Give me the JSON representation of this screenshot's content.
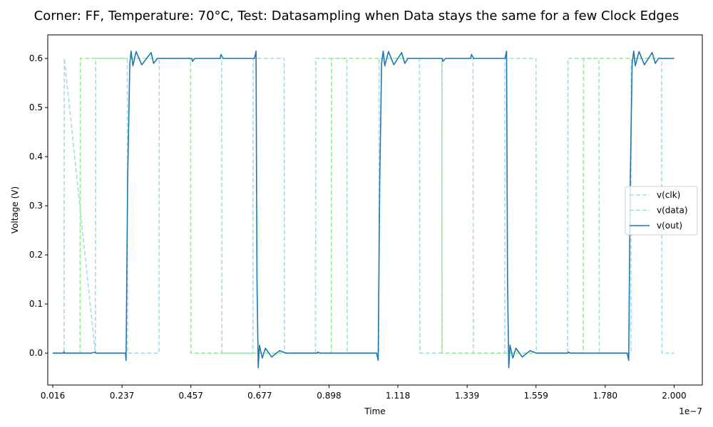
{
  "chart_data": {
    "type": "line",
    "title": "Corner: FF, Temperature: 70°C, Test: Datasampling when Data stays the same for a few Clock Edges",
    "xlabel": "Time",
    "ylabel": "Voltage (V)",
    "x_offset_text": "1e−7",
    "xlim": [
      0,
      2.09
    ],
    "ylim": [
      -0.065,
      0.648
    ],
    "xticks": [
      0.016,
      0.237,
      0.457,
      0.677,
      0.898,
      1.118,
      1.339,
      1.559,
      1.78,
      2.0
    ],
    "xtick_labels": [
      "0.016",
      "0.237",
      "0.457",
      "0.677",
      "0.898",
      "1.118",
      "1.339",
      "1.559",
      "1.780",
      "2.000"
    ],
    "yticks": [
      0.0,
      0.1,
      0.2,
      0.3,
      0.4,
      0.5,
      0.6
    ],
    "ytick_labels": [
      "0.0",
      "0.1",
      "0.2",
      "0.3",
      "0.4",
      "0.5",
      "0.6"
    ],
    "legend_position": "center-right",
    "grid": false,
    "series": [
      {
        "name": "v(clk)",
        "color": "#add8e6",
        "dash": "dashed",
        "points": [
          [
            0.016,
            0.0
          ],
          [
            0.052,
            0.0
          ],
          [
            0.053,
            0.6
          ],
          [
            0.152,
            0.0
          ],
          [
            0.153,
            0.6
          ],
          [
            0.254,
            0.6
          ],
          [
            0.255,
            0.0
          ],
          [
            0.355,
            0.0
          ],
          [
            0.356,
            0.6
          ],
          [
            0.555,
            0.6
          ],
          [
            0.556,
            0.0
          ],
          [
            0.655,
            0.0
          ],
          [
            0.656,
            0.6
          ],
          [
            0.755,
            0.6
          ],
          [
            0.756,
            0.0
          ],
          [
            0.855,
            0.0
          ],
          [
            0.856,
            0.6
          ],
          [
            0.955,
            0.6
          ],
          [
            0.956,
            0.0
          ],
          [
            1.057,
            0.0
          ],
          [
            1.058,
            0.6
          ],
          [
            1.187,
            0.6
          ],
          [
            1.188,
            0.0
          ],
          [
            1.258,
            0.0
          ],
          [
            1.259,
            0.6
          ],
          [
            1.358,
            0.6
          ],
          [
            1.359,
            0.0
          ],
          [
            1.459,
            0.0
          ],
          [
            1.46,
            0.6
          ],
          [
            1.559,
            0.6
          ],
          [
            1.56,
            0.0
          ],
          [
            1.66,
            0.0
          ],
          [
            1.661,
            0.6
          ],
          [
            1.76,
            0.6
          ],
          [
            1.761,
            0.0
          ],
          [
            1.862,
            0.0
          ],
          [
            1.863,
            0.6
          ],
          [
            1.96,
            0.6
          ],
          [
            1.961,
            0.0
          ],
          [
            2.0,
            0.0
          ]
        ]
      },
      {
        "name": "v(data)",
        "color": "#90ee90",
        "dash": "dashed",
        "points": [
          [
            0.016,
            0.0
          ],
          [
            0.103,
            0.0
          ],
          [
            0.104,
            0.6
          ],
          [
            0.456,
            0.6
          ],
          [
            0.457,
            0.0
          ],
          [
            0.905,
            0.0
          ],
          [
            0.906,
            0.6
          ],
          [
            1.258,
            0.6
          ],
          [
            1.259,
            0.0
          ],
          [
            1.71,
            0.0
          ],
          [
            1.711,
            0.6
          ],
          [
            2.0,
            0.6
          ]
        ]
      },
      {
        "name": "v(out)",
        "color": "#1f77b4",
        "dash": "solid",
        "points": [
          [
            0.016,
            0.0
          ],
          [
            0.05,
            0.0
          ],
          [
            0.052,
            0.003
          ],
          [
            0.054,
            0.0
          ],
          [
            0.14,
            0.0
          ],
          [
            0.152,
            0.002
          ],
          [
            0.154,
            0.0
          ],
          [
            0.24,
            0.0
          ],
          [
            0.248,
            0.0
          ],
          [
            0.25,
            -0.015
          ],
          [
            0.255,
            0.35
          ],
          [
            0.262,
            0.59
          ],
          [
            0.266,
            0.615
          ],
          [
            0.272,
            0.585
          ],
          [
            0.282,
            0.614
          ],
          [
            0.3,
            0.587
          ],
          [
            0.33,
            0.612
          ],
          [
            0.338,
            0.59
          ],
          [
            0.35,
            0.6
          ],
          [
            0.46,
            0.6
          ],
          [
            0.462,
            0.594
          ],
          [
            0.47,
            0.6
          ],
          [
            0.55,
            0.6
          ],
          [
            0.553,
            0.608
          ],
          [
            0.56,
            0.6
          ],
          [
            0.66,
            0.6
          ],
          [
            0.665,
            0.615
          ],
          [
            0.668,
            0.15
          ],
          [
            0.672,
            -0.03
          ],
          [
            0.676,
            0.016
          ],
          [
            0.685,
            -0.01
          ],
          [
            0.695,
            0.01
          ],
          [
            0.715,
            -0.008
          ],
          [
            0.74,
            0.005
          ],
          [
            0.76,
            0.0
          ],
          [
            0.86,
            0.0
          ],
          [
            0.862,
            0.002
          ],
          [
            0.87,
            0.0
          ],
          [
            1.05,
            0.0
          ],
          [
            1.055,
            -0.015
          ],
          [
            1.06,
            0.35
          ],
          [
            1.066,
            0.59
          ],
          [
            1.071,
            0.615
          ],
          [
            1.076,
            0.585
          ],
          [
            1.088,
            0.614
          ],
          [
            1.105,
            0.587
          ],
          [
            1.13,
            0.612
          ],
          [
            1.14,
            0.59
          ],
          [
            1.15,
            0.6
          ],
          [
            1.26,
            0.6
          ],
          [
            1.262,
            0.594
          ],
          [
            1.27,
            0.6
          ],
          [
            1.35,
            0.6
          ],
          [
            1.353,
            0.608
          ],
          [
            1.36,
            0.6
          ],
          [
            1.46,
            0.6
          ],
          [
            1.465,
            0.615
          ],
          [
            1.468,
            0.15
          ],
          [
            1.472,
            -0.03
          ],
          [
            1.476,
            0.016
          ],
          [
            1.485,
            -0.01
          ],
          [
            1.495,
            0.01
          ],
          [
            1.515,
            -0.008
          ],
          [
            1.54,
            0.005
          ],
          [
            1.56,
            0.0
          ],
          [
            1.66,
            0.0
          ],
          [
            1.662,
            0.002
          ],
          [
            1.67,
            0.0
          ],
          [
            1.85,
            0.0
          ],
          [
            1.855,
            -0.015
          ],
          [
            1.86,
            0.35
          ],
          [
            1.866,
            0.59
          ],
          [
            1.871,
            0.615
          ],
          [
            1.876,
            0.585
          ],
          [
            1.888,
            0.614
          ],
          [
            1.905,
            0.587
          ],
          [
            1.93,
            0.612
          ],
          [
            1.94,
            0.59
          ],
          [
            1.95,
            0.6
          ],
          [
            2.0,
            0.6
          ]
        ]
      }
    ]
  }
}
